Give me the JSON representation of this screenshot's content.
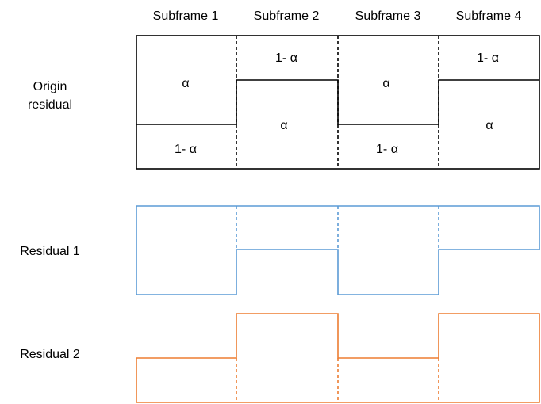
{
  "columns": [
    "Subframe 1",
    "Subframe 2",
    "Subframe 3",
    "Subframe 4"
  ],
  "rows": {
    "origin_line1": "Origin",
    "origin_line2": "residual",
    "residual1": "Residual 1",
    "residual2": "Residual 2"
  },
  "cells": {
    "alpha": "α",
    "one_minus_alpha": "1- α"
  },
  "colors": {
    "outline": "#000000",
    "residual1": "#5b9bd5",
    "residual2": "#ed7d31"
  }
}
